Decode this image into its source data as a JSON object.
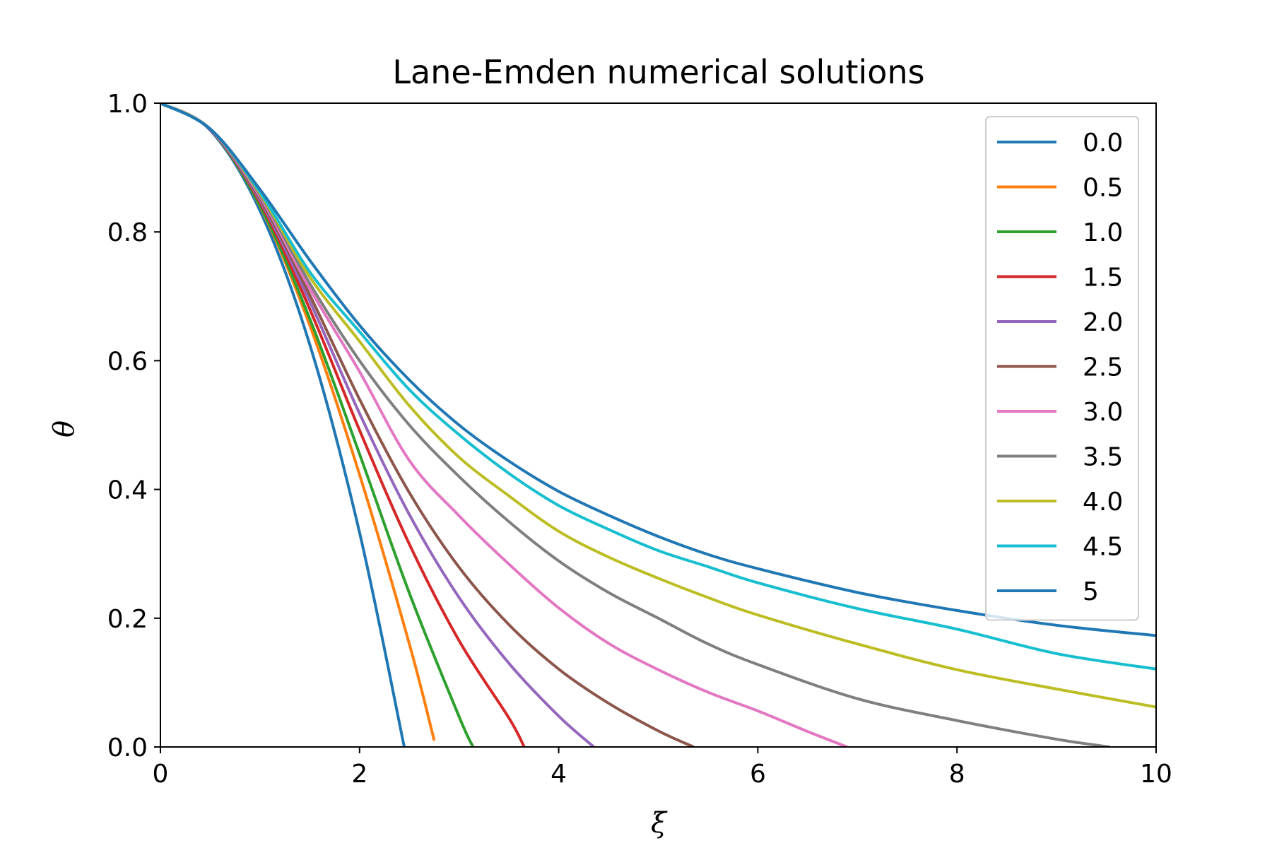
{
  "chart_data": {
    "type": "line",
    "title": "Lane-Emden numerical solutions",
    "xlabel": "ξ",
    "ylabel": "θ",
    "xlim": [
      0,
      10
    ],
    "ylim": [
      0,
      1
    ],
    "xticks": [
      0,
      2,
      4,
      6,
      8,
      10
    ],
    "xtick_labels": [
      "0",
      "2",
      "4",
      "6",
      "8",
      "10"
    ],
    "yticks": [
      0,
      0.2,
      0.4,
      0.6,
      0.8,
      1.0
    ],
    "ytick_labels": [
      "0.0",
      "0.2",
      "0.4",
      "0.6",
      "0.8",
      "1.0"
    ],
    "grid": false,
    "legend_position": "top-right",
    "series": [
      {
        "name": "0.0",
        "color": "#1f77b4",
        "x": [
          0,
          0.5,
          1.0,
          1.5,
          2.0,
          2.449
        ],
        "y": [
          1.0,
          0.958,
          0.833,
          0.625,
          0.333,
          0.0
        ]
      },
      {
        "name": "0.5",
        "color": "#ff7f0e",
        "x": [
          0,
          0.5,
          1.0,
          1.5,
          2.0,
          2.5,
          2.75
        ],
        "y": [
          1.0,
          0.959,
          0.84,
          0.655,
          0.423,
          0.16,
          0.01
        ]
      },
      {
        "name": "1.0",
        "color": "#2ca02c",
        "x": [
          0,
          0.5,
          1.0,
          1.5,
          2.0,
          2.5,
          3.0,
          3.14
        ],
        "y": [
          1.0,
          0.959,
          0.841,
          0.665,
          0.455,
          0.239,
          0.047,
          0.0
        ]
      },
      {
        "name": "1.5",
        "color": "#d62728",
        "x": [
          0,
          0.5,
          1.0,
          1.5,
          2.0,
          2.5,
          3.0,
          3.5,
          3.654
        ],
        "y": [
          1.0,
          0.959,
          0.846,
          0.68,
          0.492,
          0.315,
          0.165,
          0.045,
          0.0
        ]
      },
      {
        "name": "2.0",
        "color": "#9467bd",
        "x": [
          0,
          0.5,
          1.0,
          1.5,
          2.0,
          2.5,
          3.0,
          3.5,
          4.0,
          4.353
        ],
        "y": [
          1.0,
          0.959,
          0.849,
          0.692,
          0.518,
          0.361,
          0.232,
          0.13,
          0.048,
          0.0
        ]
      },
      {
        "name": "2.5",
        "color": "#8c564b",
        "x": [
          0,
          0.5,
          1.0,
          1.5,
          2.0,
          2.5,
          3.0,
          3.5,
          4.0,
          4.5,
          5.0,
          5.355
        ],
        "y": [
          1.0,
          0.96,
          0.852,
          0.702,
          0.54,
          0.395,
          0.279,
          0.19,
          0.121,
          0.068,
          0.025,
          0.0
        ]
      },
      {
        "name": "3.0",
        "color": "#e377c2",
        "x": [
          0,
          0.5,
          1.0,
          1.5,
          2.0,
          2.5,
          3.0,
          3.5,
          4.0,
          4.5,
          5.0,
          5.5,
          6.0,
          6.5,
          6.897
        ],
        "y": [
          1.0,
          0.96,
          0.855,
          0.712,
          0.583,
          0.445,
          0.359,
          0.284,
          0.216,
          0.161,
          0.12,
          0.085,
          0.056,
          0.024,
          0.0
        ]
      },
      {
        "name": "3.5",
        "color": "#7f7f7f",
        "x": [
          0,
          0.5,
          1.0,
          1.5,
          2.0,
          2.5,
          3.0,
          3.5,
          4.0,
          4.5,
          5.0,
          5.5,
          6.0,
          7.0,
          8.0,
          9.0,
          9.536
        ],
        "y": [
          1.0,
          0.96,
          0.858,
          0.72,
          0.6,
          0.5,
          0.42,
          0.35,
          0.289,
          0.24,
          0.2,
          0.16,
          0.128,
          0.075,
          0.041,
          0.012,
          0.0
        ]
      },
      {
        "name": "4.0",
        "color": "#bcbd22",
        "x": [
          0,
          0.5,
          1.0,
          1.5,
          2.0,
          2.5,
          3.0,
          3.5,
          4.0,
          4.5,
          5.0,
          5.5,
          6.0,
          7.0,
          8.0,
          9.0,
          10.0
        ],
        "y": [
          1.0,
          0.96,
          0.86,
          0.73,
          0.63,
          0.53,
          0.45,
          0.39,
          0.335,
          0.295,
          0.262,
          0.232,
          0.205,
          0.16,
          0.12,
          0.09,
          0.062
        ]
      },
      {
        "name": "4.5",
        "color": "#17becf",
        "x": [
          0,
          0.5,
          1.0,
          1.5,
          2.0,
          2.5,
          3.0,
          3.5,
          4.0,
          4.5,
          5.0,
          5.5,
          6.0,
          7.0,
          8.0,
          9.0,
          10.0
        ],
        "y": [
          1.0,
          0.96,
          0.862,
          0.738,
          0.645,
          0.555,
          0.485,
          0.425,
          0.375,
          0.338,
          0.305,
          0.28,
          0.255,
          0.215,
          0.183,
          0.145,
          0.121
        ]
      },
      {
        "name": "5",
        "color": "#1f77b4",
        "x": [
          0,
          0.5,
          1.0,
          1.5,
          2.0,
          2.5,
          3.0,
          3.5,
          4.0,
          4.5,
          5.0,
          5.5,
          6.0,
          7.0,
          8.0,
          9.0,
          10.0
        ],
        "y": [
          1.0,
          0.96,
          0.866,
          0.756,
          0.655,
          0.57,
          0.5,
          0.444,
          0.397,
          0.36,
          0.327,
          0.299,
          0.277,
          0.24,
          0.212,
          0.189,
          0.173
        ]
      }
    ]
  }
}
